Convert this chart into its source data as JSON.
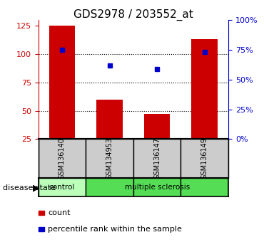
{
  "title": "GDS2978 / 203552_at",
  "samples": [
    "GSM136140",
    "GSM134953",
    "GSM136147",
    "GSM136149"
  ],
  "bar_values": [
    125,
    60,
    47,
    113
  ],
  "percentile_values": [
    75,
    62,
    59,
    73
  ],
  "left_ylim": [
    25,
    130
  ],
  "left_yticks": [
    25,
    50,
    75,
    100,
    125
  ],
  "right_ylim": [
    0,
    100
  ],
  "right_yticks": [
    0,
    25,
    50,
    75,
    100
  ],
  "right_yticklabels": [
    "0%",
    "25%",
    "50%",
    "75%",
    "100%"
  ],
  "bar_color": "#cc0000",
  "percentile_color": "#0000cc",
  "disease_states": [
    "control",
    "multiple sclerosis",
    "multiple sclerosis",
    "multiple sclerosis"
  ],
  "disease_label": "disease state",
  "control_color": "#bbffbb",
  "ms_color": "#55dd55",
  "legend_count_label": "count",
  "legend_percentile_label": "percentile rank within the sample",
  "dotted_lines": [
    50,
    75,
    100
  ],
  "left_axis_color": "#cc0000",
  "right_axis_color": "#0000cc",
  "label_bg_color": "#cccccc"
}
